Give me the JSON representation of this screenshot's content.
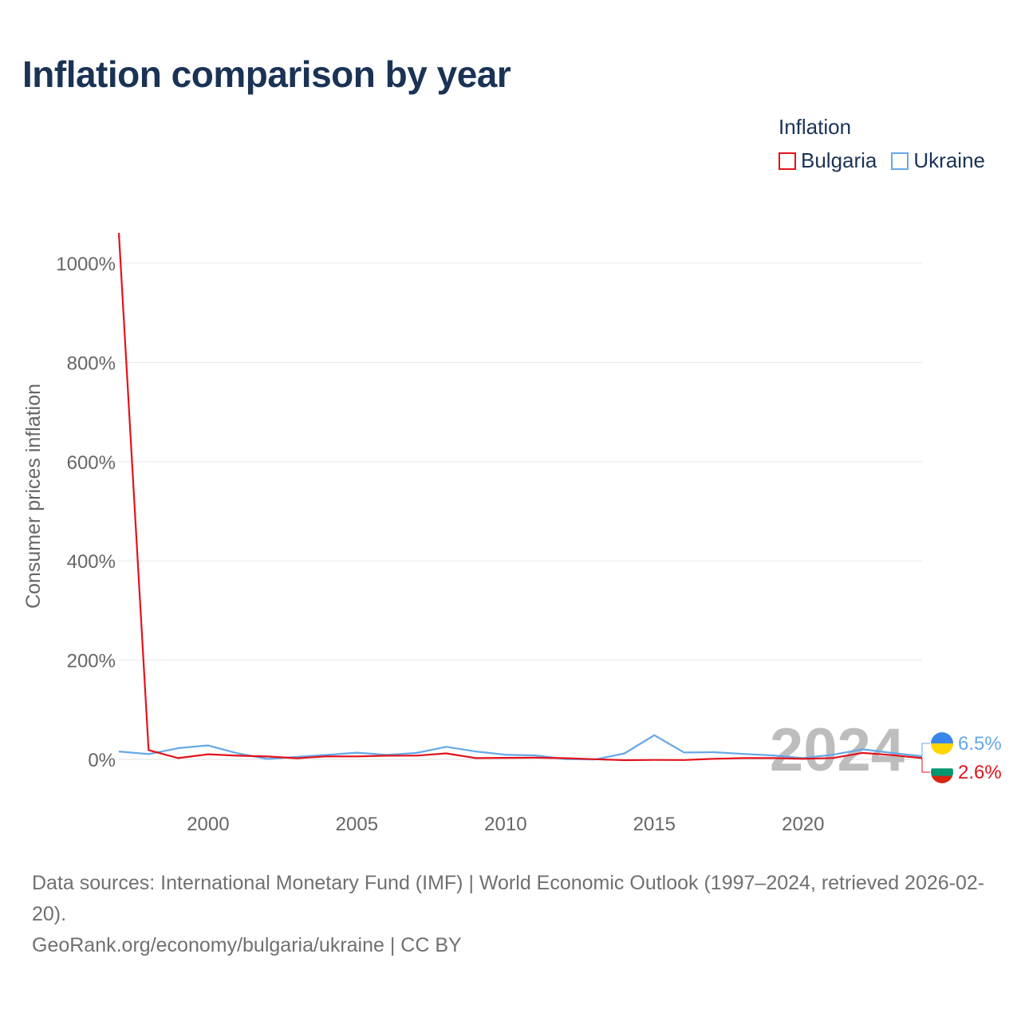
{
  "title": "Inflation comparison by year",
  "legend": {
    "title": "Inflation",
    "items": [
      {
        "label": "Bulgaria",
        "color": "#e3121b"
      },
      {
        "label": "Ukraine",
        "color": "#64a8e8"
      }
    ]
  },
  "chart_data": {
    "type": "line",
    "title": "Inflation comparison by year",
    "xlabel": "",
    "ylabel": "Consumer prices inflation",
    "x": [
      1997,
      1998,
      1999,
      2000,
      2001,
      2002,
      2003,
      2004,
      2005,
      2006,
      2007,
      2008,
      2009,
      2010,
      2011,
      2012,
      2013,
      2014,
      2015,
      2016,
      2017,
      2018,
      2019,
      2020,
      2021,
      2022,
      2023,
      2024
    ],
    "xlim": [
      1997,
      2024
    ],
    "ylim": [
      -80,
      1080
    ],
    "xticks": [
      2000,
      2005,
      2010,
      2015,
      2020
    ],
    "yticks": [
      0,
      200,
      400,
      600,
      800,
      1000
    ],
    "ytick_labels": [
      "0%",
      "200%",
      "400%",
      "600%",
      "800%",
      "1000%"
    ],
    "grid": true,
    "series": [
      {
        "name": "Bulgaria",
        "color": "#e3121b",
        "values": [
          1061.2,
          18.7,
          2.6,
          10.3,
          7.4,
          5.8,
          2.3,
          6.1,
          6.0,
          7.4,
          7.6,
          12.0,
          2.5,
          3.0,
          3.4,
          2.4,
          0.4,
          -1.6,
          -1.1,
          -1.3,
          1.2,
          2.6,
          2.5,
          1.2,
          2.8,
          13.0,
          8.6,
          2.6
        ],
        "end_label": "2.6%"
      },
      {
        "name": "Ukraine",
        "color": "#64a8e8",
        "values": [
          15.9,
          10.6,
          22.7,
          28.2,
          12.0,
          0.8,
          5.2,
          9.0,
          13.5,
          9.1,
          12.8,
          25.2,
          15.9,
          9.4,
          8.0,
          0.6,
          -0.3,
          12.1,
          48.7,
          13.9,
          14.4,
          10.9,
          7.9,
          2.7,
          9.4,
          20.2,
          12.9,
          6.5
        ],
        "end_label": "6.5%"
      }
    ],
    "current_year_label": "2024"
  },
  "footer": {
    "source_line": "Data sources: International Monetary Fund (IMF) | World Economic Outlook (1997–2024, retrieved 2026-02-20).",
    "credit_line": "GeoRank.org/economy/bulgaria/ukraine | CC BY"
  }
}
